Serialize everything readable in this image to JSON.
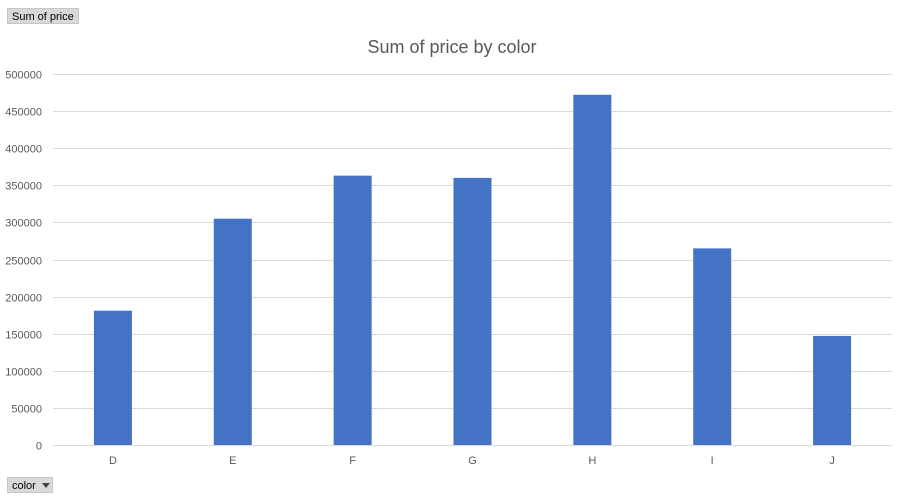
{
  "value_field_button": {
    "label": "Sum of price"
  },
  "axis_field_button": {
    "label": "color",
    "icon": "dropdown-arrow-icon"
  },
  "chart_data": {
    "type": "bar",
    "title": "Sum of price by color",
    "xlabel": "",
    "ylabel": "",
    "categories": [
      "D",
      "E",
      "F",
      "G",
      "H",
      "I",
      "J"
    ],
    "series": [
      {
        "values": [
          181000,
          305000,
          363000,
          360000,
          472000,
          265000,
          147000
        ]
      }
    ],
    "ylim": [
      0,
      500000
    ],
    "yticks": [
      0,
      50000,
      100000,
      150000,
      200000,
      250000,
      300000,
      350000,
      400000,
      450000,
      500000
    ],
    "grid": true,
    "legend": "none",
    "bar_color": "#4472c4"
  }
}
